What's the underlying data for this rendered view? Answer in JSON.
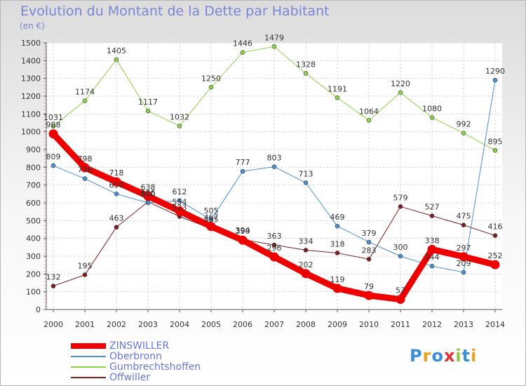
{
  "chart_data": {
    "type": "line",
    "title": "Evolution du Montant de la Dette par Habitant",
    "subtitle": "(en €)",
    "xlabel": "",
    "ylabel": "",
    "categories": [
      "2000",
      "2001",
      "2002",
      "2003",
      "2004",
      "2005",
      "2006",
      "2007",
      "2008",
      "2009",
      "2010",
      "2011",
      "2012",
      "2013",
      "2014"
    ],
    "ylim": [
      0,
      1500
    ],
    "ytick_step": 100,
    "grid": true,
    "series": [
      {
        "name": "ZINSWILLER",
        "color": "#ee0000",
        "width": 9,
        "values": [
          988,
          798,
          718,
          638,
          554,
          467,
          390,
          296,
          202,
          119,
          79,
          57,
          338,
          297,
          252
        ],
        "labels": [
          "988",
          "798",
          "718",
          "638",
          "554",
          "467",
          "390",
          "296",
          "202",
          "119",
          "79",
          "57",
          "338",
          "297",
          "252"
        ]
      },
      {
        "name": "Oberbronn",
        "color": "#4a90d0",
        "width": 1,
        "values": [
          809,
          736,
          650,
          600,
          612,
          505,
          777,
          803,
          713,
          469,
          379,
          300,
          244,
          209,
          1290
        ],
        "labels": [
          "809",
          "736",
          "650",
          "600",
          "612",
          "505",
          "777",
          "803",
          "713",
          "469",
          "379",
          "300",
          "244",
          "209",
          "1290"
        ]
      },
      {
        "name": "Gumbrechtshoffen",
        "color": "#8ed24a",
        "width": 1,
        "values": [
          1031,
          1174,
          1405,
          1117,
          1032,
          1250,
          1446,
          1479,
          1328,
          1191,
          1064,
          1220,
          1080,
          992,
          895
        ],
        "labels": [
          "1031",
          "1174",
          "1405",
          "1117",
          "1032",
          "1250",
          "1446",
          "1479",
          "1328",
          "1191",
          "1064",
          "1220",
          "1080",
          "992",
          "895"
        ]
      },
      {
        "name": "Offwiller",
        "color": "#7a1e1e",
        "width": 1,
        "values": [
          132,
          195,
          463,
          606,
          523,
          455,
          394,
          363,
          334,
          318,
          283,
          579,
          527,
          475,
          416
        ],
        "labels": [
          "132",
          "195",
          "463",
          "606",
          "523",
          "455",
          "394",
          "363",
          "334",
          "318",
          "283",
          "579",
          "527",
          "475",
          "416"
        ]
      }
    ]
  },
  "legend": {
    "items": [
      {
        "label": "ZINSWILLER",
        "color": "#ee0000",
        "thickness": 8
      },
      {
        "label": "Oberbronn",
        "color": "#4a90d0",
        "thickness": 2
      },
      {
        "label": "Gumbrechtshoffen",
        "color": "#8ed24a",
        "thickness": 2
      },
      {
        "label": "Offwiller",
        "color": "#7a1e1e",
        "thickness": 2
      }
    ]
  },
  "logo": {
    "letters": [
      "P",
      "r",
      "o",
      "x",
      "i",
      "t",
      "i"
    ],
    "colors": [
      "#3a8fd6",
      "#f0a020",
      "#3a8fd6",
      "#e03030",
      "#8ec63f",
      "#3a8fd6",
      "#f0a020"
    ]
  }
}
